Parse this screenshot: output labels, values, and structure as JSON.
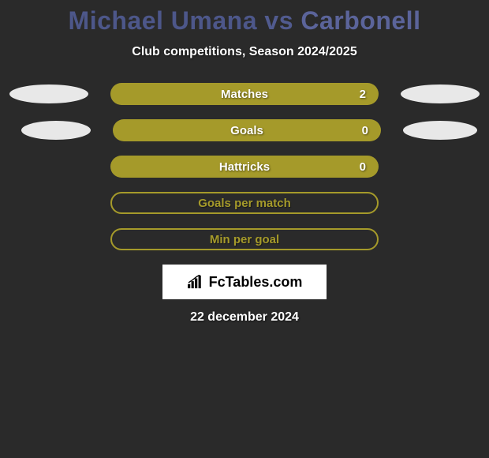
{
  "title": {
    "player1": "Michael Umana",
    "vs": "vs",
    "player2": "Carbonell"
  },
  "subtitle": "Club competitions, Season 2024/2025",
  "stats": [
    {
      "label": "Matches",
      "value": "2",
      "filled": true,
      "ellipses": true,
      "ell_shift": false
    },
    {
      "label": "Goals",
      "value": "0",
      "filled": true,
      "ellipses": true,
      "ell_shift": true
    },
    {
      "label": "Hattricks",
      "value": "0",
      "filled": true,
      "ellipses": false
    },
    {
      "label": "Goals per match",
      "value": "",
      "filled": false,
      "ellipses": false
    },
    {
      "label": "Min per goal",
      "value": "",
      "filled": false,
      "ellipses": false
    }
  ],
  "logo": "FcTables.com",
  "date": "22 december 2024",
  "colors": {
    "background": "#2a2a2a",
    "bar_fill": "#a59a2a",
    "bar_outline": "#a59a2a",
    "ellipse": "#e8e8e8",
    "title": "#515b8f",
    "logo_bg": "#ffffff",
    "text": "#ffffff"
  }
}
